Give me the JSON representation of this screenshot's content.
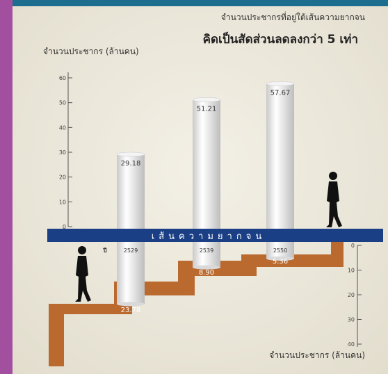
{
  "chart_data": [
    {
      "type": "bar",
      "title": "จำนวนประชากรที่อยู่ใต้เส้นความยากจน",
      "subtitle": "คิดเป็นสัดส่วนลดลงกว่า 5 เท่า",
      "ylabel": "จำนวนประชากร (ล้านคน)",
      "ylim": [
        0,
        60
      ],
      "yticks": [
        "0",
        "10",
        "20",
        "30",
        "40",
        "50",
        "60"
      ],
      "x_prefix": "ปี",
      "categories": [
        "2529",
        "2539",
        "2550"
      ],
      "values": [
        29.18,
        51.21,
        57.67
      ],
      "value_labels": [
        "29.18",
        "51.21",
        "57.67"
      ]
    },
    {
      "type": "bar",
      "orientation": "inverted",
      "ylabel": "จำนวนประชากร (ล้านคน)",
      "ylim": [
        0,
        40
      ],
      "yticks": [
        "0",
        "10",
        "20",
        "30",
        "40"
      ],
      "categories": [
        "2529",
        "2539",
        "2550"
      ],
      "values": [
        23.78,
        8.9,
        5.36
      ],
      "value_labels": [
        "23.78",
        "8.90",
        "5.36"
      ]
    }
  ],
  "poverty_line_label": "เส้นความยากจน",
  "colors": {
    "background": "#a34fa0",
    "panel": "#ece8dc",
    "band": "#1b3f85",
    "stairs": "#bb6a2f",
    "bars": "#e6e6e6",
    "text": "#333333"
  },
  "icons": [
    "walking-man-icon",
    "walking-man-icon"
  ]
}
